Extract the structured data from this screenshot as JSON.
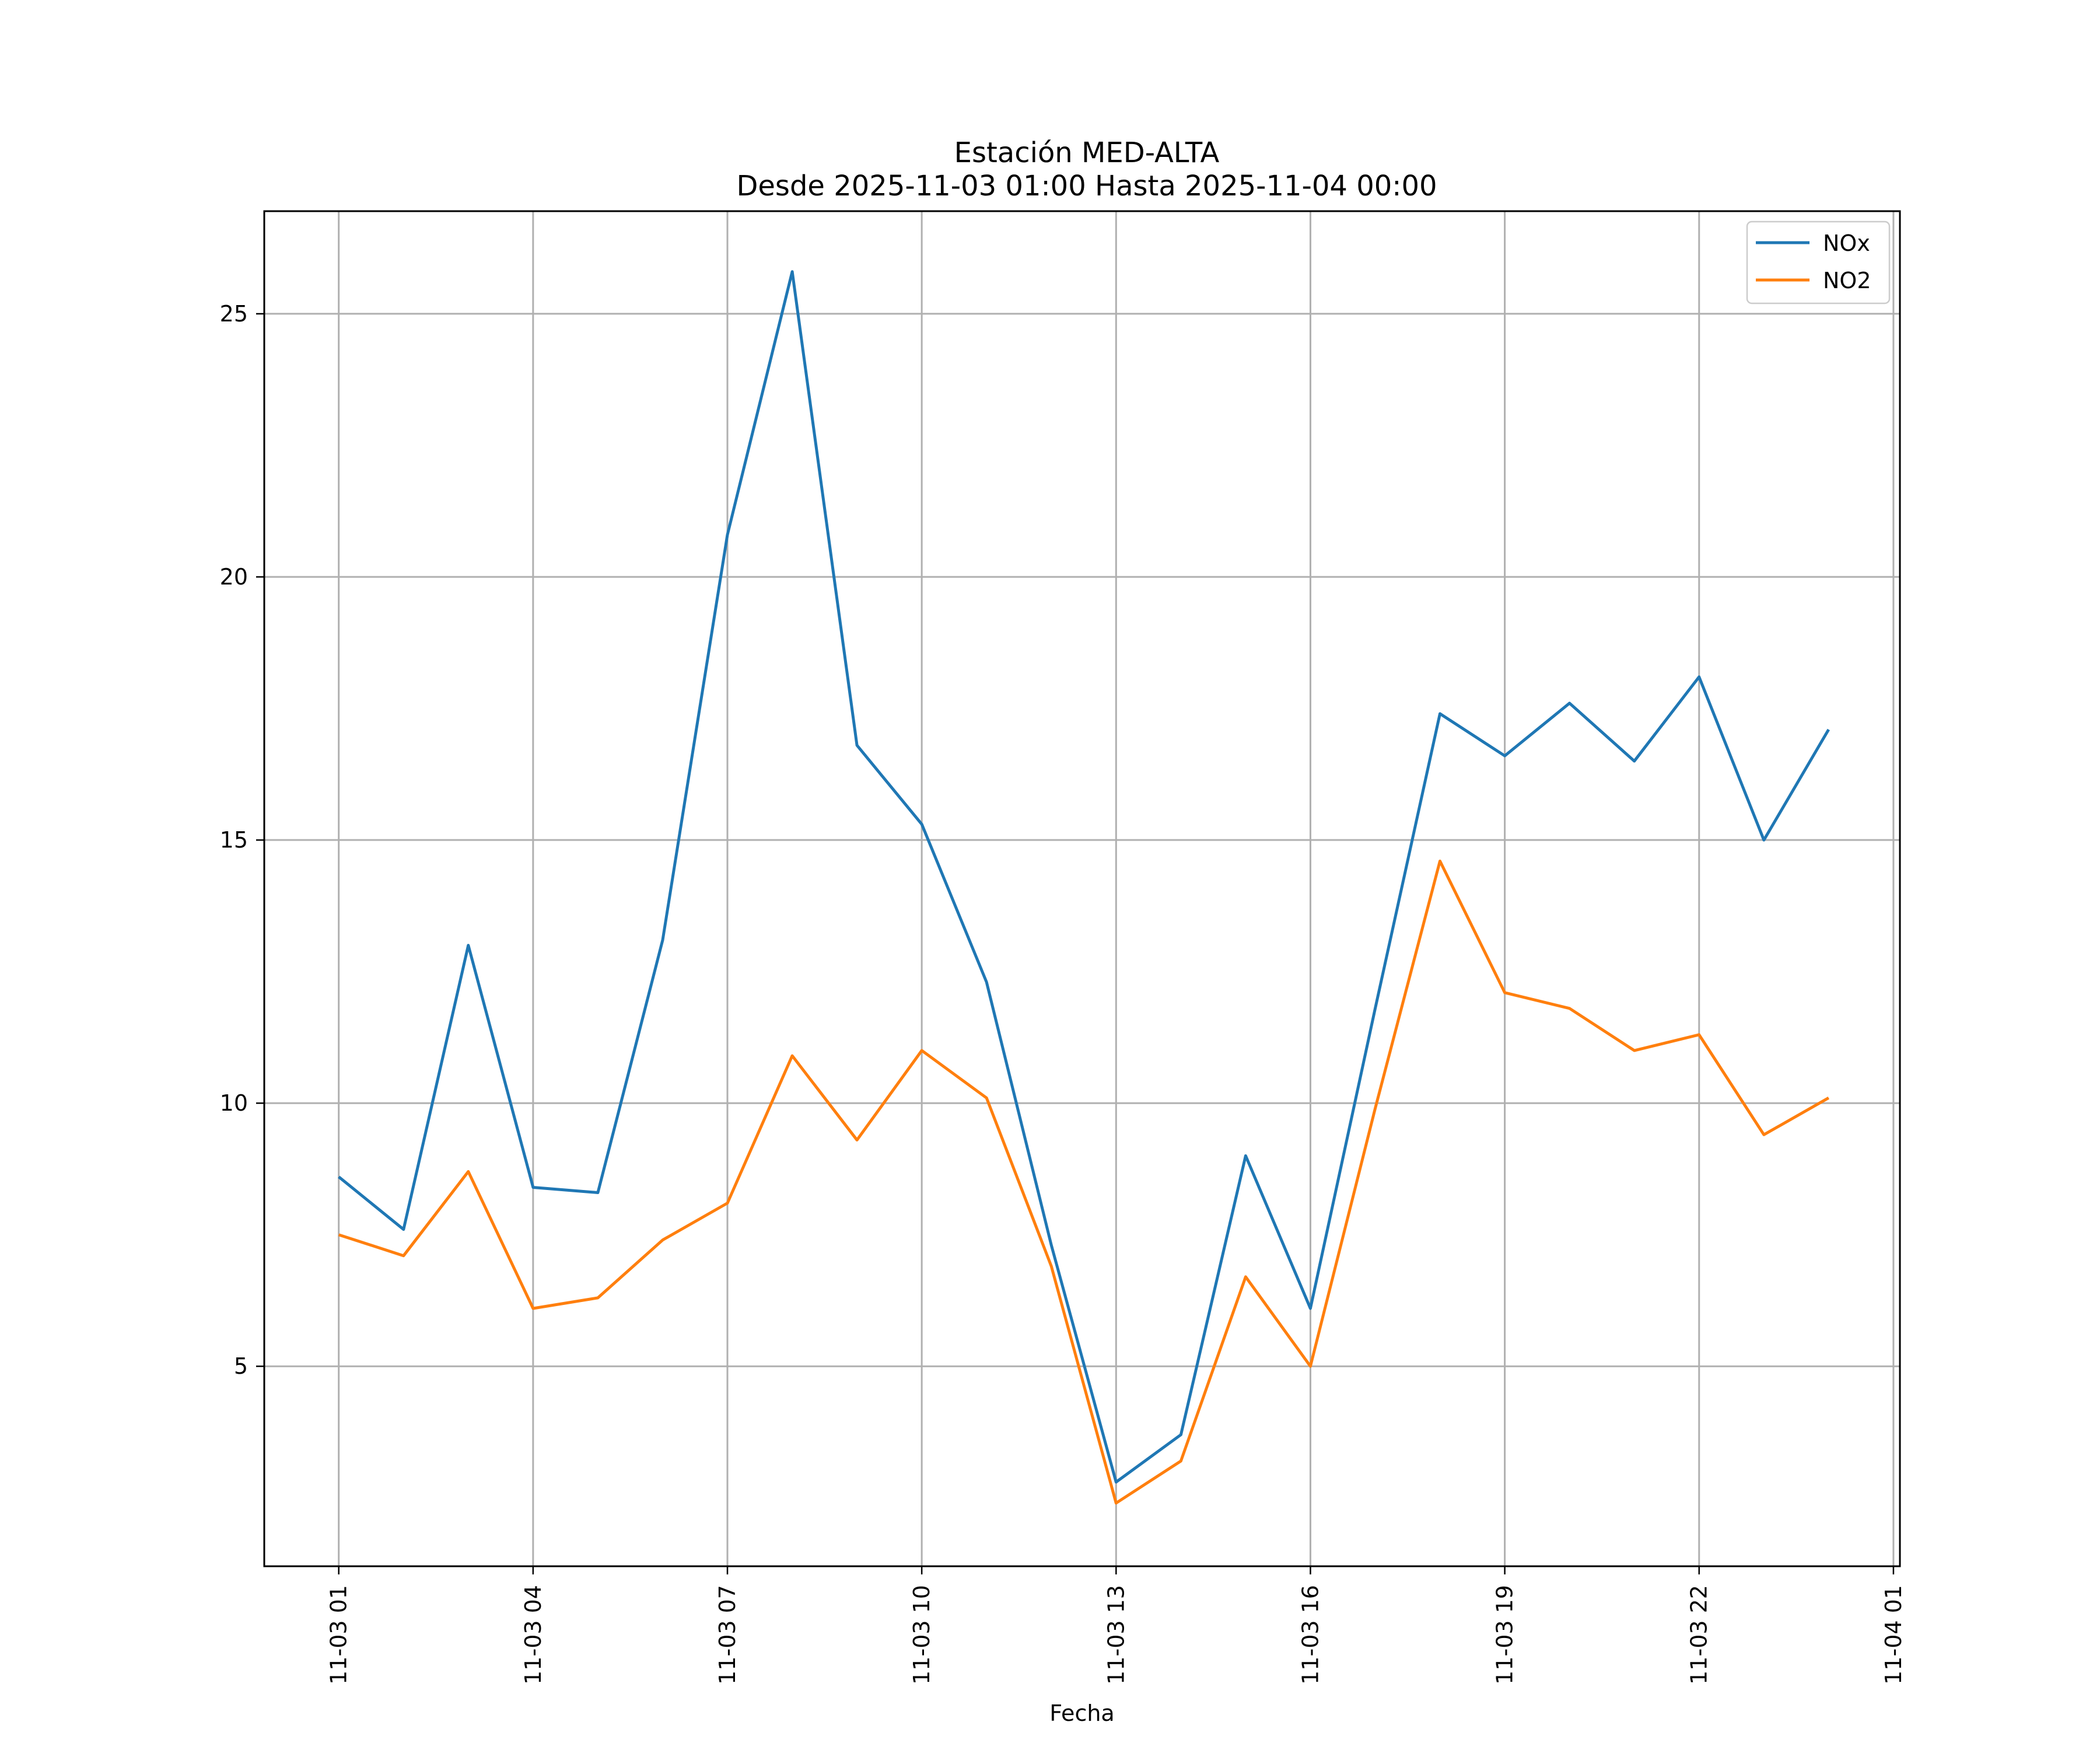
{
  "chart_data": {
    "type": "line",
    "title": "Estación MED-ALTA",
    "subtitle": "Desde 2025-11-03 01:00 Hasta 2025-11-04 00:00",
    "xlabel": "Fecha",
    "ylabel": "",
    "x_hours": [
      0,
      1,
      2,
      3,
      4,
      5,
      6,
      7,
      8,
      9,
      10,
      11,
      12,
      13,
      14,
      15,
      16,
      17,
      18,
      19,
      20,
      21,
      22,
      23
    ],
    "x_tick_hours": [
      0,
      3,
      6,
      9,
      12,
      15,
      18,
      21,
      24
    ],
    "x_tick_labels": [
      "11-03 01",
      "11-03 04",
      "11-03 07",
      "11-03 10",
      "11-03 13",
      "11-03 16",
      "11-03 19",
      "11-03 22",
      "11-04 01"
    ],
    "xlim": [
      -1.15,
      24.1
    ],
    "ylim": [
      1.2,
      26.95
    ],
    "y_ticks": [
      5,
      10,
      15,
      20,
      25
    ],
    "grid": true,
    "legend_position": "top-right",
    "series": [
      {
        "name": "NOx",
        "color": "#1f77b4",
        "values": [
          8.6,
          7.6,
          13.0,
          8.4,
          8.3,
          13.1,
          20.8,
          25.8,
          16.8,
          15.3,
          12.3,
          7.3,
          2.8,
          3.7,
          9.0,
          6.1,
          11.8,
          17.4,
          16.6,
          17.6,
          16.5,
          18.1,
          15.0,
          17.1
        ]
      },
      {
        "name": "NO2",
        "color": "#ff7f0e",
        "values": [
          7.5,
          7.1,
          8.7,
          6.1,
          6.3,
          7.4,
          8.1,
          10.9,
          9.3,
          11.0,
          10.1,
          6.9,
          2.4,
          3.2,
          6.7,
          5.0,
          9.9,
          14.6,
          12.1,
          11.8,
          11.0,
          11.3,
          9.4,
          10.1
        ]
      }
    ]
  }
}
